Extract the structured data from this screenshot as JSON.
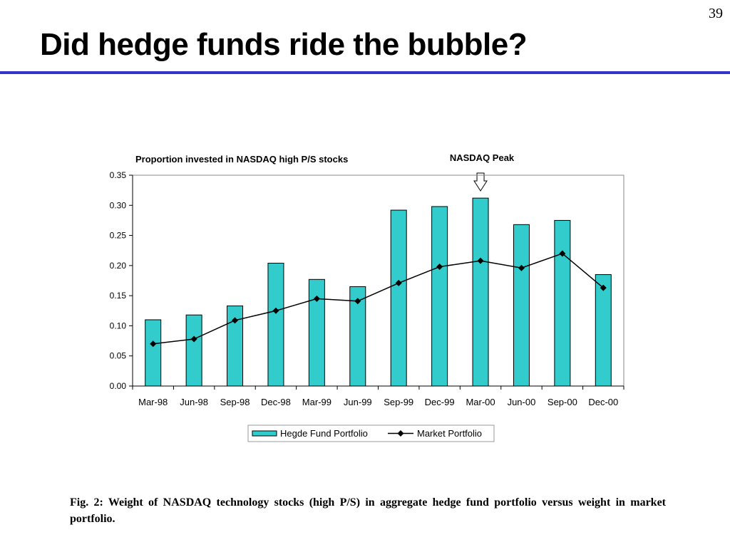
{
  "slide": {
    "page_number": "39",
    "title": "Did hedge funds ride the bubble?",
    "caption": "Fig. 2: Weight of NASDAQ technology stocks (high P/S) in aggregate hedge fund portfolio versus weight in market portfolio."
  },
  "chart_data": {
    "type": "bar",
    "title": "Proportion invested in NASDAQ high P/S stocks",
    "annotation": "NASDAQ Peak",
    "annotation_category": "Mar-00",
    "categories": [
      "Mar-98",
      "Jun-98",
      "Sep-98",
      "Dec-98",
      "Mar-99",
      "Jun-99",
      "Sep-99",
      "Dec-99",
      "Mar-00",
      "Jun-00",
      "Sep-00",
      "Dec-00"
    ],
    "series": [
      {
        "name": "Hegde Fund Portfolio",
        "type": "bar",
        "color": "#33cccc",
        "values": [
          0.11,
          0.118,
          0.133,
          0.204,
          0.177,
          0.165,
          0.292,
          0.298,
          0.312,
          0.268,
          0.275,
          0.185
        ]
      },
      {
        "name": "Market Portfolio",
        "type": "line",
        "color": "#000000",
        "values": [
          0.07,
          0.078,
          0.109,
          0.125,
          0.145,
          0.141,
          0.171,
          0.198,
          0.208,
          0.196,
          0.22,
          0.163
        ]
      }
    ],
    "ylim": [
      0,
      0.35
    ],
    "yticks": [
      "0.00",
      "0.05",
      "0.10",
      "0.15",
      "0.20",
      "0.25",
      "0.30",
      "0.35"
    ],
    "grid": false,
    "legend_position": "bottom"
  }
}
